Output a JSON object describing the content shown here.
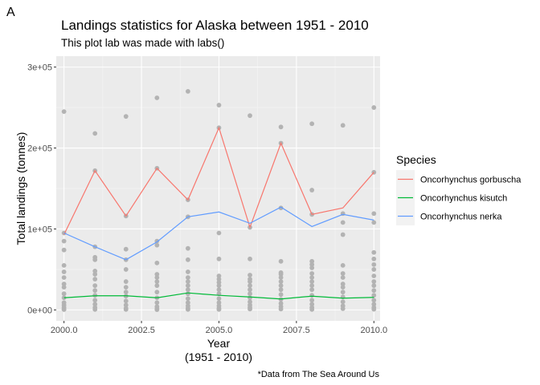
{
  "tag": "A",
  "chart_data": {
    "type": "scatter+line",
    "title": "Landings statistics for Alaska between 1951 - 2010",
    "subtitle": "This plot lab was made with labs()",
    "xlabel_lines": [
      "Year",
      "(1951 - 2010)"
    ],
    "ylabel": "Total landings (tonnes)",
    "caption": "*Data from The Sea Around Us",
    "xlim": [
      1999.75,
      2010.2
    ],
    "ylim": [
      -13500,
      313500
    ],
    "x_ticks": [
      2000,
      2002.5,
      2005,
      2007.5,
      2010
    ],
    "x_tick_labels": [
      "2000.0",
      "2002.5",
      "2005.0",
      "2007.5",
      "2010.0"
    ],
    "y_ticks": [
      0,
      100000,
      200000,
      300000
    ],
    "y_tick_labels": [
      "0e+00",
      "1e+05",
      "2e+05",
      "3e+05"
    ],
    "grid": true,
    "legend": {
      "title": "Species",
      "position": "right"
    },
    "point_color": "#b3b3b3",
    "points": [
      [
        2000,
        245000
      ],
      [
        2000,
        95000
      ],
      [
        2000,
        85000
      ],
      [
        2000,
        74000
      ],
      [
        2000,
        55000
      ],
      [
        2000,
        47000
      ],
      [
        2000,
        40000
      ],
      [
        2000,
        32000
      ],
      [
        2000,
        28000
      ],
      [
        2000,
        20000
      ],
      [
        2000,
        15000
      ],
      [
        2000,
        9000
      ],
      [
        2000,
        6000
      ],
      [
        2000,
        3000
      ],
      [
        2000,
        1000
      ],
      [
        2000,
        400
      ],
      [
        2001,
        218000
      ],
      [
        2001,
        172000
      ],
      [
        2001,
        78000
      ],
      [
        2001,
        65000
      ],
      [
        2001,
        62000
      ],
      [
        2001,
        48000
      ],
      [
        2001,
        44000
      ],
      [
        2001,
        38000
      ],
      [
        2001,
        30000
      ],
      [
        2001,
        24000
      ],
      [
        2001,
        18000
      ],
      [
        2001,
        12000
      ],
      [
        2001,
        7000
      ],
      [
        2001,
        3000
      ],
      [
        2001,
        500
      ],
      [
        2002,
        239000
      ],
      [
        2002,
        116000
      ],
      [
        2002,
        75000
      ],
      [
        2002,
        62000
      ],
      [
        2002,
        50000
      ],
      [
        2002,
        35000
      ],
      [
        2002,
        28000
      ],
      [
        2002,
        22000
      ],
      [
        2002,
        17000
      ],
      [
        2002,
        11000
      ],
      [
        2002,
        6000
      ],
      [
        2002,
        2000
      ],
      [
        2002,
        500
      ],
      [
        2003,
        262000
      ],
      [
        2003,
        175000
      ],
      [
        2003,
        85000
      ],
      [
        2003,
        80000
      ],
      [
        2003,
        58000
      ],
      [
        2003,
        44000
      ],
      [
        2003,
        40000
      ],
      [
        2003,
        35000
      ],
      [
        2003,
        30000
      ],
      [
        2003,
        22000
      ],
      [
        2003,
        15000
      ],
      [
        2003,
        9000
      ],
      [
        2003,
        4000
      ],
      [
        2003,
        1500
      ],
      [
        2003,
        300
      ],
      [
        2004,
        270000
      ],
      [
        2004,
        136000
      ],
      [
        2004,
        115000
      ],
      [
        2004,
        76000
      ],
      [
        2004,
        62000
      ],
      [
        2004,
        47000
      ],
      [
        2004,
        40000
      ],
      [
        2004,
        35000
      ],
      [
        2004,
        30000
      ],
      [
        2004,
        25000
      ],
      [
        2004,
        20000
      ],
      [
        2004,
        14000
      ],
      [
        2004,
        9000
      ],
      [
        2004,
        5000
      ],
      [
        2004,
        2000
      ],
      [
        2004,
        500
      ],
      [
        2005,
        253000
      ],
      [
        2005,
        225000
      ],
      [
        2005,
        95000
      ],
      [
        2005,
        63000
      ],
      [
        2005,
        42000
      ],
      [
        2005,
        38000
      ],
      [
        2005,
        34000
      ],
      [
        2005,
        30000
      ],
      [
        2005,
        25000
      ],
      [
        2005,
        20000
      ],
      [
        2005,
        14000
      ],
      [
        2005,
        9000
      ],
      [
        2005,
        5000
      ],
      [
        2005,
        2000
      ],
      [
        2005,
        500
      ],
      [
        2006,
        240000
      ],
      [
        2006,
        102000
      ],
      [
        2006,
        63000
      ],
      [
        2006,
        43000
      ],
      [
        2006,
        38000
      ],
      [
        2006,
        35000
      ],
      [
        2006,
        30000
      ],
      [
        2006,
        25000
      ],
      [
        2006,
        20000
      ],
      [
        2006,
        15000
      ],
      [
        2006,
        10000
      ],
      [
        2006,
        6000
      ],
      [
        2006,
        3000
      ],
      [
        2006,
        1000
      ],
      [
        2007,
        226000
      ],
      [
        2007,
        206000
      ],
      [
        2007,
        126000
      ],
      [
        2007,
        60000
      ],
      [
        2007,
        46000
      ],
      [
        2007,
        44000
      ],
      [
        2007,
        40000
      ],
      [
        2007,
        35000
      ],
      [
        2007,
        30000
      ],
      [
        2007,
        25000
      ],
      [
        2007,
        19000
      ],
      [
        2007,
        13000
      ],
      [
        2007,
        8000
      ],
      [
        2007,
        4000
      ],
      [
        2007,
        1000
      ],
      [
        2008,
        230000
      ],
      [
        2008,
        148000
      ],
      [
        2008,
        118000
      ],
      [
        2008,
        60000
      ],
      [
        2008,
        56000
      ],
      [
        2008,
        52000
      ],
      [
        2008,
        45000
      ],
      [
        2008,
        40000
      ],
      [
        2008,
        35000
      ],
      [
        2008,
        30000
      ],
      [
        2008,
        25000
      ],
      [
        2008,
        18000
      ],
      [
        2008,
        12000
      ],
      [
        2008,
        7000
      ],
      [
        2008,
        3000
      ],
      [
        2008,
        500
      ],
      [
        2009,
        228000
      ],
      [
        2009,
        119000
      ],
      [
        2009,
        108000
      ],
      [
        2009,
        93000
      ],
      [
        2009,
        55000
      ],
      [
        2009,
        45000
      ],
      [
        2009,
        40000
      ],
      [
        2009,
        32000
      ],
      [
        2009,
        28000
      ],
      [
        2009,
        22000
      ],
      [
        2009,
        16000
      ],
      [
        2009,
        10000
      ],
      [
        2009,
        5000
      ],
      [
        2009,
        1500
      ],
      [
        2010,
        250000
      ],
      [
        2010,
        170000
      ],
      [
        2010,
        119000
      ],
      [
        2010,
        108000
      ],
      [
        2010,
        71000
      ],
      [
        2010,
        63000
      ],
      [
        2010,
        56000
      ],
      [
        2010,
        50000
      ],
      [
        2010,
        42000
      ],
      [
        2010,
        35000
      ],
      [
        2010,
        30000
      ],
      [
        2010,
        24000
      ],
      [
        2010,
        18000
      ],
      [
        2010,
        12000
      ],
      [
        2010,
        7000
      ],
      [
        2010,
        3000
      ],
      [
        2010,
        800
      ]
    ],
    "series": [
      {
        "name": "Oncorhynchus gorbuscha",
        "color": "#f8766d",
        "x": [
          2000,
          2001,
          2002,
          2003,
          2004,
          2005,
          2006,
          2007,
          2008,
          2009,
          2010
        ],
        "values": [
          93000,
          172000,
          116000,
          175000,
          136000,
          225000,
          102000,
          206000,
          118000,
          126000,
          170000
        ]
      },
      {
        "name": "Oncorhynchus kisutch",
        "color": "#00ba38",
        "x": [
          2000,
          2001,
          2002,
          2003,
          2004,
          2005,
          2006,
          2007,
          2008,
          2009,
          2010
        ],
        "values": [
          15000,
          17500,
          17500,
          15000,
          21000,
          18000,
          16000,
          13500,
          17000,
          14500,
          15500
        ]
      },
      {
        "name": "Oncorhynchus nerka",
        "color": "#619cff",
        "x": [
          2000,
          2001,
          2002,
          2003,
          2004,
          2005,
          2006,
          2007,
          2008,
          2009,
          2010
        ],
        "values": [
          95000,
          78000,
          62000,
          84000,
          115000,
          121000,
          107000,
          127000,
          103000,
          118000,
          111000
        ]
      }
    ]
  }
}
